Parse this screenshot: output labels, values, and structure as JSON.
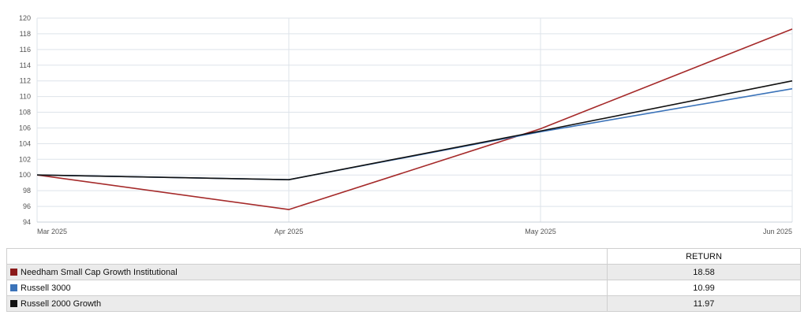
{
  "chart_data": {
    "type": "line",
    "x": [
      "Mar 2025",
      "Apr 2025",
      "May 2025",
      "Jun 2025"
    ],
    "y_ticks": [
      94,
      96,
      98,
      100,
      102,
      104,
      106,
      108,
      110,
      112,
      114,
      116,
      118,
      120
    ],
    "ylim": [
      94,
      120
    ],
    "grid": true,
    "series": [
      {
        "name": "Needham Small Cap Growth Institutional",
        "color": "#a52a2a",
        "values": [
          100,
          95.6,
          105.9,
          118.6
        ]
      },
      {
        "name": "Russell 3000",
        "color": "#3b73b9",
        "values": [
          100,
          99.4,
          105.5,
          111.0
        ]
      },
      {
        "name": "Russell 2000 Growth",
        "color": "#111111",
        "values": [
          100,
          99.4,
          105.6,
          112.0
        ]
      }
    ]
  },
  "table": {
    "header": "RETURN",
    "rows": [
      {
        "name": "Needham Small Cap Growth Institutional",
        "color": "#8b1a1a",
        "return": "18.58"
      },
      {
        "name": "Russell 3000",
        "color": "#3b73b9",
        "return": "10.99"
      },
      {
        "name": "Russell 2000 Growth",
        "color": "#111111",
        "return": "11.97"
      }
    ]
  }
}
